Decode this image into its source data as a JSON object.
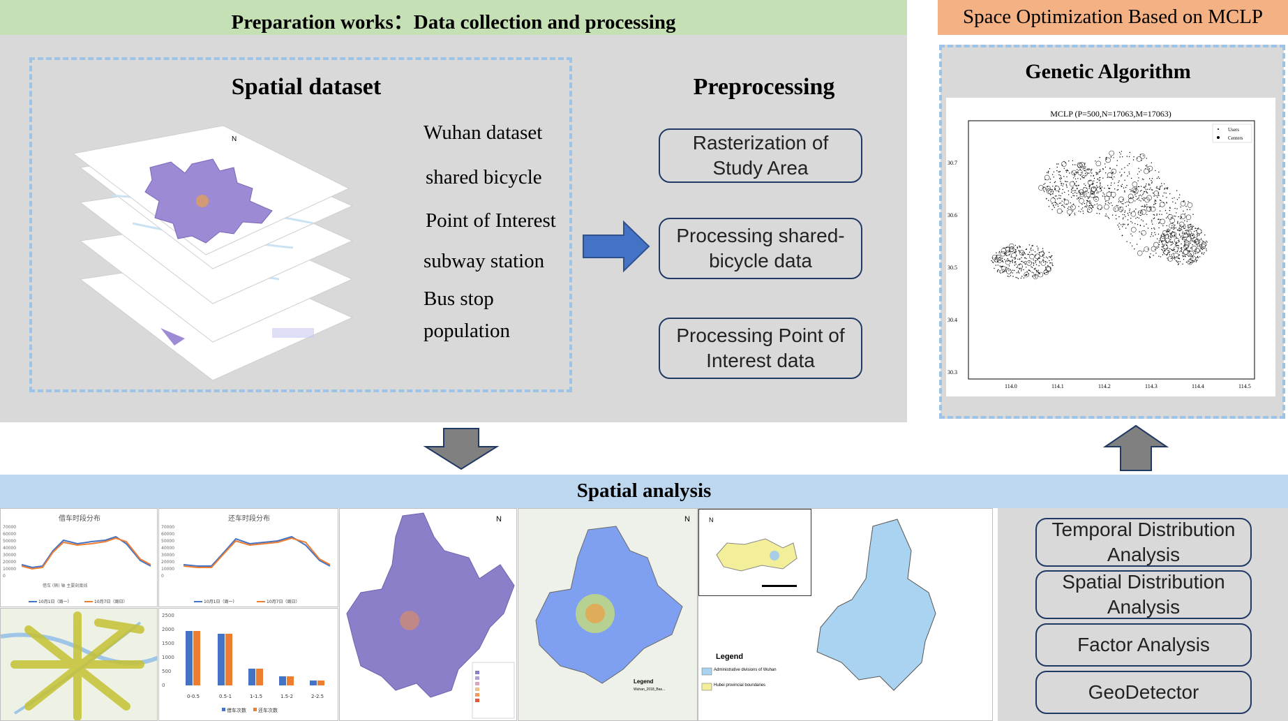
{
  "prep_banner": {
    "title": "Preparation works：Data collection and processing"
  },
  "spatial_dataset": {
    "heading": "Spatial dataset",
    "items": [
      "Wuhan dataset",
      "shared bicycle",
      "Point of Interest",
      "subway station",
      "Bus stop",
      "population"
    ]
  },
  "preprocessing": {
    "heading": "Preprocessing",
    "steps": [
      "Rasterization of Study Area",
      "Processing shared-bicycle data",
      "Processing Point of Interest data"
    ]
  },
  "mclp_banner": {
    "title": "Space Optimization Based on MCLP"
  },
  "genetic": {
    "heading": "Genetic Algorithm",
    "plot": {
      "title": "MCLP (P=500,N=17063,M=17063)",
      "legend": [
        "Users",
        "Centers"
      ],
      "x_ticks": [
        "114.0",
        "114.1",
        "114.2",
        "114.3",
        "114.4",
        "114.5"
      ],
      "y_ticks": [
        "30.7",
        "30.6",
        "30.5",
        "30.4",
        "30.3"
      ]
    }
  },
  "spatial_analysis": {
    "title": "Spatial analysis"
  },
  "analyses": [
    "Temporal Distribution Analysis",
    "Spatial Distribution Analysis",
    "Factor Analysis",
    "GeoDetector"
  ],
  "thumb_charts": {
    "borrow": {
      "title": "借车时段分布",
      "y_ticks": [
        "70000",
        "60000",
        "50000",
        "40000",
        "30000",
        "20000",
        "10000",
        "0"
      ],
      "legend": [
        "10月1日（周一）",
        "10月7日（周日）"
      ],
      "note": "借车 (辆) 轴 主要刻度线"
    },
    "return": {
      "title": "还车时段分布",
      "y_ticks": [
        "70000",
        "60000",
        "50000",
        "40000",
        "30000",
        "20000",
        "10000",
        "0"
      ],
      "legend": [
        "10月1日（周一）",
        "10月7日（周日）"
      ]
    },
    "bars": {
      "categories": [
        "0-0.5",
        "0.5-1",
        "1-1.5",
        "1.5-2",
        "2-2.5"
      ],
      "y_ticks": [
        "2500",
        "2000",
        "1500",
        "1000",
        "500",
        "0"
      ],
      "legend": [
        "借车次数",
        "还车次数"
      ]
    }
  },
  "map_labels": {
    "north": "N",
    "legend": "Legend",
    "admin": "Administrative divisions of Wuhan",
    "hubei": "Hubei provincial boundaries",
    "wuhan_label": "Wuhan_2018_Bas..."
  },
  "colors": {
    "accent_arrow": "#4472c4",
    "gray_arrow": "#808080",
    "dash": "#9dc3e6"
  }
}
